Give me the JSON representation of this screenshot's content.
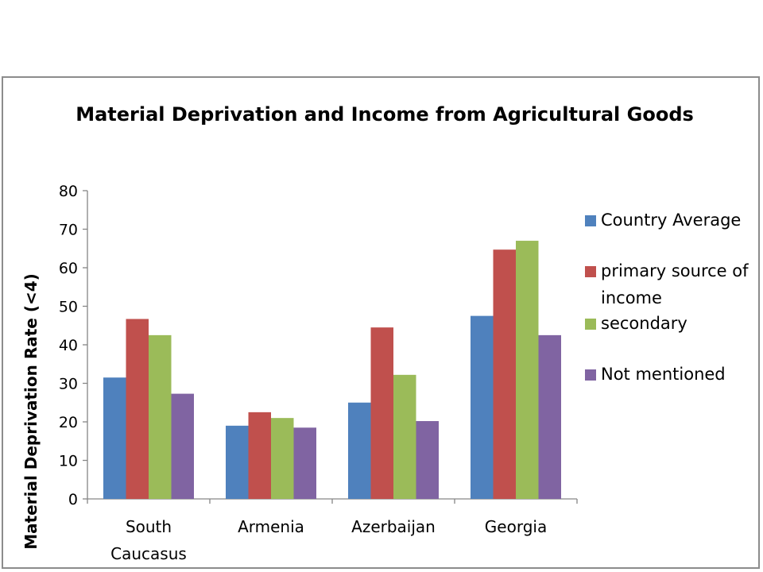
{
  "chart_data": {
    "type": "bar",
    "title": "Material Deprivation and Income from Agricultural Goods",
    "ylabel": "Material Deprivation Rate (<4)",
    "xlabel": "",
    "ylim": [
      0,
      80
    ],
    "yticks": [
      "0",
      "10",
      "20",
      "30",
      "40",
      "50",
      "60",
      "70",
      "80"
    ],
    "categories": [
      [
        "South",
        "Caucasus"
      ],
      [
        "Armenia"
      ],
      [
        "Azerbaijan"
      ],
      [
        "Georgia"
      ]
    ],
    "series": [
      {
        "name": "Country Average",
        "color": "#4f81bd",
        "values": [
          31.5,
          19,
          25,
          47.5
        ]
      },
      {
        "name": "primary source of income",
        "legend_lines": [
          "primary source of",
          "income"
        ],
        "color": "#c0504d",
        "values": [
          46.7,
          22.5,
          44.5,
          64.7
        ]
      },
      {
        "name": "secondary",
        "color": "#9bbb59",
        "values": [
          42.5,
          21,
          32.2,
          67
        ]
      },
      {
        "name": "Not mentioned",
        "color": "#8064a2",
        "values": [
          27.3,
          18.5,
          20.2,
          42.5
        ]
      }
    ],
    "grid": false,
    "legend_position": "right"
  }
}
